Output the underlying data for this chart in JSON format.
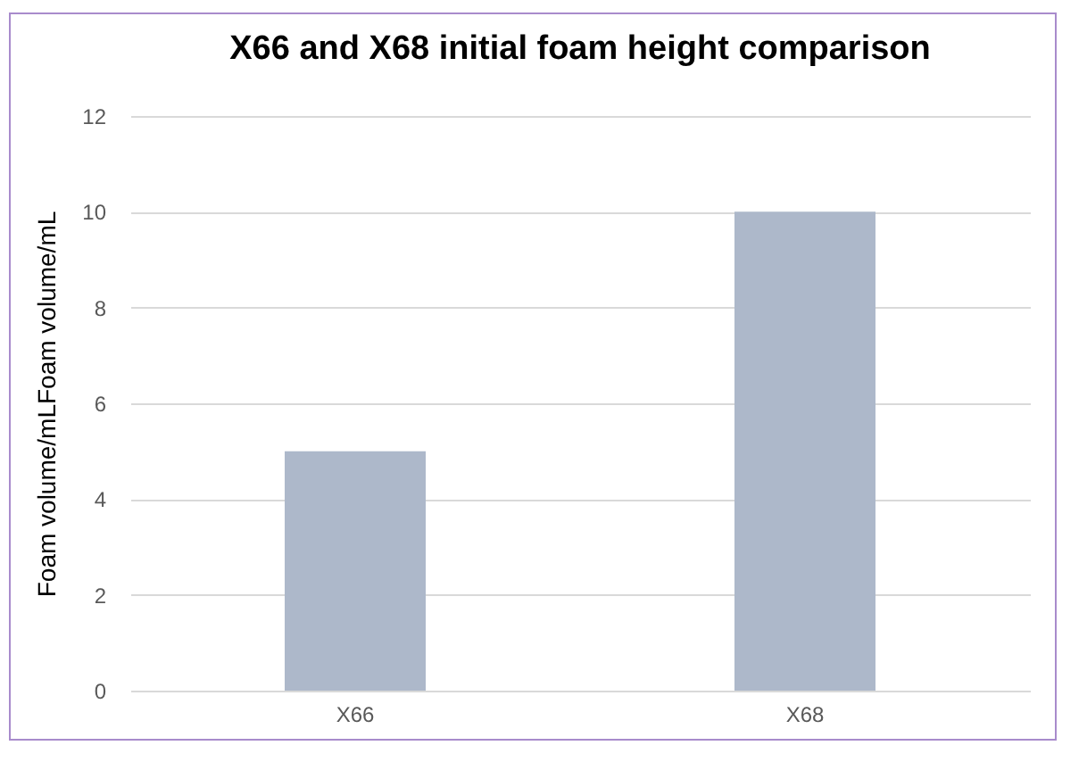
{
  "chart_data": {
    "type": "bar",
    "title": "X66 and X68 initial foam height comparison",
    "ylabel": "Foam volume/mLFoam volume/mL",
    "categories": [
      "X66",
      "X68"
    ],
    "values": [
      5,
      10
    ],
    "color": "#adb8ca",
    "ylim": [
      0,
      12
    ],
    "yticks": [
      0,
      2,
      4,
      6,
      8,
      10,
      12
    ],
    "grid": "y"
  }
}
